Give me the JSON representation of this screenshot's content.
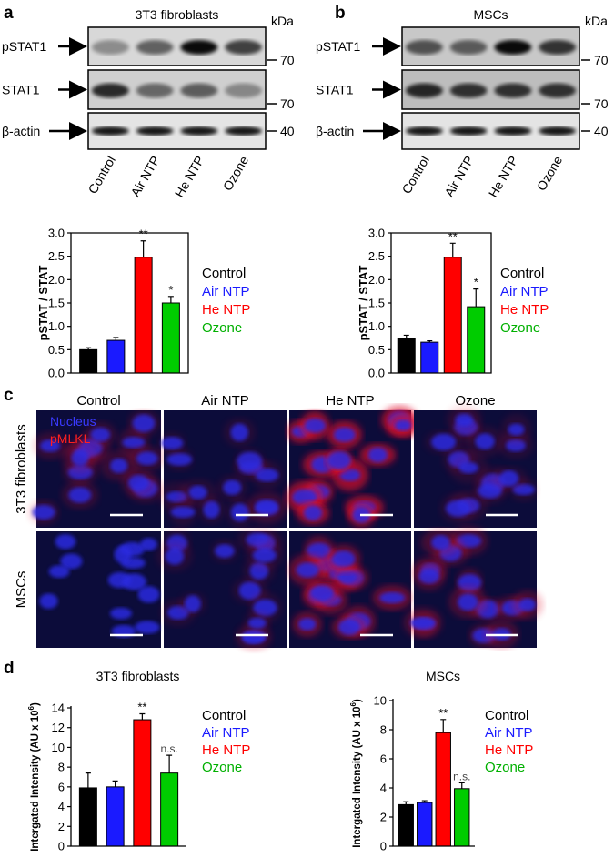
{
  "panel_labels": [
    "a",
    "b",
    "c",
    "d"
  ],
  "blots": [
    {
      "title": "3T3 fibroblasts",
      "unit": "kDa",
      "rows": [
        {
          "label": "pSTAT1",
          "marker": 70
        },
        {
          "label": "STAT1",
          "marker": 70
        },
        {
          "label": "β-actin",
          "marker": 40
        }
      ],
      "lanes": [
        "Control",
        "Air NTP",
        "He NTP",
        "Ozone"
      ]
    },
    {
      "title": "MSCs",
      "unit": "kDa",
      "rows": [
        {
          "label": "pSTAT1",
          "marker": 70
        },
        {
          "label": "STAT1",
          "marker": 70
        },
        {
          "label": "β-actin",
          "marker": 40
        }
      ],
      "lanes": [
        "Control",
        "Air NTP",
        "He NTP",
        "Ozone"
      ]
    }
  ],
  "microscopy": {
    "columns": [
      "Control",
      "Air NTP",
      "He NTP",
      "Ozone"
    ],
    "rows": [
      "3T3 fibroblasts",
      "MSCs"
    ],
    "stains": [
      "Nucleus",
      "pMLKL"
    ]
  },
  "chart_data": [
    {
      "type": "bar",
      "categories": [
        "Control",
        "Air NTP",
        "He NTP",
        "Ozone"
      ],
      "colors": [
        "#000000",
        "#1a1aff",
        "#ff0000",
        "#00cc00"
      ],
      "values": [
        0.5,
        0.7,
        2.48,
        1.5
      ],
      "errors": [
        0.04,
        0.06,
        0.35,
        0.14
      ],
      "significance": [
        null,
        null,
        "**",
        "*"
      ],
      "ylabel": [
        "pSTAT / STAT"
      ],
      "ylim": [
        0,
        3
      ],
      "yticks": [
        {
          "value": 0,
          "label": "0.0"
        },
        {
          "value": 0.5,
          "label": "0.5"
        },
        {
          "value": 1,
          "label": "1.0"
        },
        {
          "value": 1.5,
          "label": "1.5"
        },
        {
          "value": 2,
          "label": "2.0"
        },
        {
          "value": 2.5,
          "label": "2.5"
        },
        {
          "value": 3,
          "label": "3.0"
        }
      ],
      "box": true
    },
    {
      "type": "bar",
      "categories": [
        "Control",
        "Air NTP",
        "He NTP",
        "Ozone"
      ],
      "colors": [
        "#000000",
        "#1a1aff",
        "#ff0000",
        "#00cc00"
      ],
      "values": [
        0.75,
        0.66,
        2.48,
        1.42
      ],
      "errors": [
        0.06,
        0.03,
        0.3,
        0.38
      ],
      "significance": [
        null,
        null,
        "**",
        "*"
      ],
      "ylabel": [
        "pSTAT / STAT"
      ],
      "ylim": [
        0,
        3
      ],
      "yticks": [
        {
          "value": 0,
          "label": "0.0"
        },
        {
          "value": 0.5,
          "label": "0.5"
        },
        {
          "value": 1,
          "label": "1.0"
        },
        {
          "value": 1.5,
          "label": "1.5"
        },
        {
          "value": 2,
          "label": "2.0"
        },
        {
          "value": 2.5,
          "label": "2.5"
        },
        {
          "value": 3,
          "label": "3.0"
        }
      ],
      "box": true
    },
    {
      "type": "bar",
      "title": "3T3 fibroblasts",
      "categories": [
        "Control",
        "Air NTP",
        "He NTP",
        "Ozone"
      ],
      "colors": [
        "#000000",
        "#1a1aff",
        "#ff0000",
        "#00cc00"
      ],
      "values": [
        5.9,
        6.0,
        12.8,
        7.4
      ],
      "errors": [
        1.5,
        0.6,
        0.6,
        1.8
      ],
      "significance": [
        null,
        null,
        "**",
        "n.s."
      ],
      "ylabel": [
        "Intergated Intensity (AU x 10",
        "6",
        ")"
      ],
      "ylim": [
        0,
        14
      ],
      "yticks": [
        0,
        2,
        4,
        6,
        8,
        10,
        12,
        14
      ],
      "box": false
    },
    {
      "type": "bar",
      "title": "MSCs",
      "categories": [
        "Control",
        "Air NTP",
        "He NTP",
        "Ozone"
      ],
      "colors": [
        "#000000",
        "#1a1aff",
        "#ff0000",
        "#00cc00"
      ],
      "values": [
        2.85,
        3.0,
        7.8,
        3.95
      ],
      "errors": [
        0.2,
        0.12,
        0.9,
        0.4
      ],
      "significance": [
        null,
        null,
        "**",
        "n.s."
      ],
      "ylabel": [
        "Intergated Intensity (AU x 10",
        "6",
        ")"
      ],
      "ylim": [
        0,
        10
      ],
      "yticks": [
        0,
        2,
        4,
        6,
        8,
        10
      ],
      "box": false
    }
  ]
}
